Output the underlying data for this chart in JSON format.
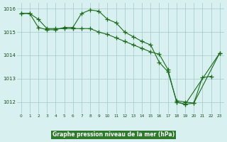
{
  "title": "Graphe pression niveau de la mer (hPa)",
  "xlabel_hours": [
    0,
    1,
    2,
    3,
    4,
    5,
    6,
    7,
    8,
    9,
    10,
    11,
    12,
    13,
    14,
    15,
    16,
    17,
    18,
    19,
    20,
    21,
    22,
    23
  ],
  "line1_x": [
    0,
    1,
    2,
    3,
    4,
    5,
    6,
    7,
    8,
    9,
    10,
    11,
    12,
    13,
    14,
    15,
    16,
    17,
    18,
    19,
    20,
    21,
    22
  ],
  "line1_y": [
    1015.8,
    1015.8,
    1015.2,
    1015.1,
    1015.1,
    1015.2,
    1015.2,
    1015.8,
    1015.95,
    1015.9,
    1015.55,
    1015.4,
    1015.0,
    1014.8,
    1014.6,
    1014.45,
    1013.7,
    1013.3,
    1012.05,
    1012.0,
    1011.95,
    1013.05,
    1013.1
  ],
  "line2_x": [
    0,
    1,
    2,
    3,
    4,
    5,
    6,
    7,
    8,
    9,
    10,
    11,
    12,
    13,
    14,
    15,
    16,
    17,
    18,
    19,
    23
  ],
  "line2_y": [
    1015.8,
    1015.8,
    1015.55,
    1015.15,
    1015.15,
    1015.15,
    1015.15,
    1015.15,
    1015.15,
    1015.0,
    1014.9,
    1014.75,
    1014.6,
    1014.45,
    1014.3,
    1014.15,
    1014.05,
    1013.4,
    1012.0,
    1011.9,
    1014.1
  ],
  "line3_x": [
    18,
    19,
    20,
    23
  ],
  "line3_y": [
    1012.0,
    1011.9,
    1011.95,
    1014.1
  ],
  "ylim": [
    1011.5,
    1016.25
  ],
  "yticks": [
    1012,
    1013,
    1014,
    1015,
    1016
  ],
  "line_color": "#1a6b1a",
  "bg_color": "#d8f0f0",
  "grid_color": "#a0c8c8",
  "title_bg": "#2d7a2d",
  "title_fg": "#ffffff",
  "figsize": [
    3.2,
    2.0
  ],
  "dpi": 100
}
